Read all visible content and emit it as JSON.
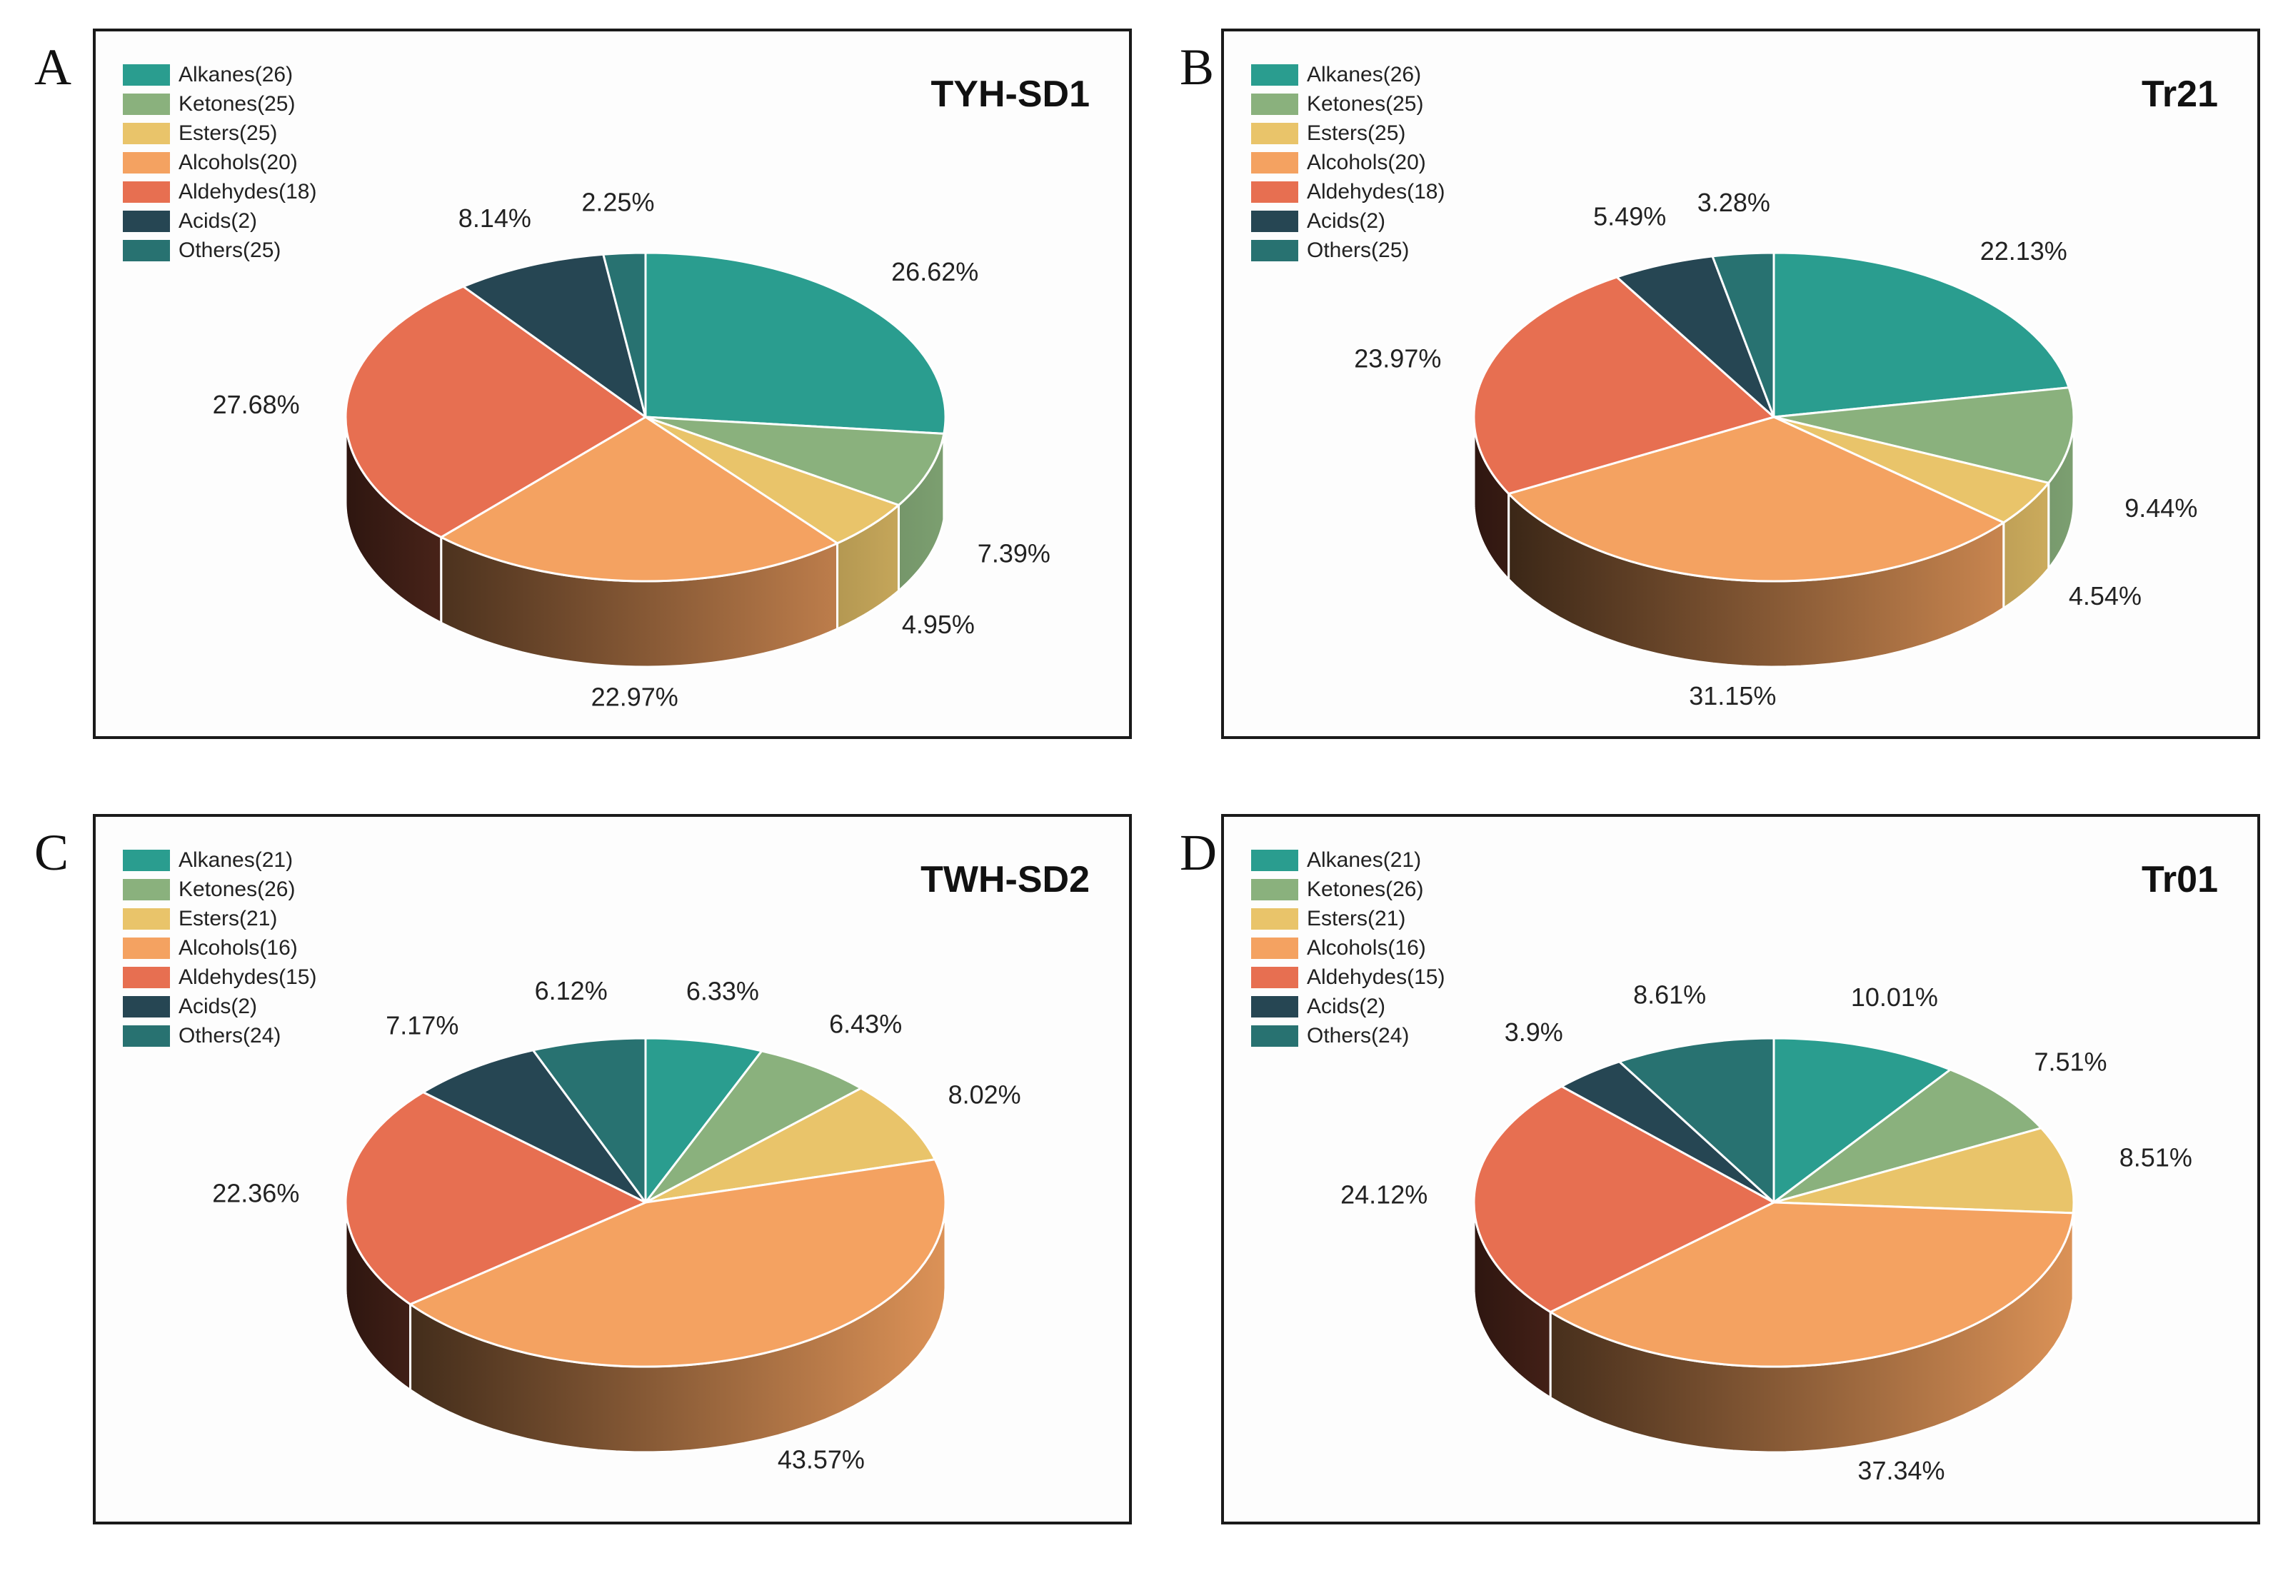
{
  "colors": {
    "Alkanes": "#2a9d8f",
    "Ketones": "#8ab17d",
    "Esters": "#e9c46a",
    "Alcohols": "#f4a261",
    "Aldehydes": "#e76f51",
    "Acids": "#264653",
    "Others": "#287271"
  },
  "panels": [
    {
      "letter": "A",
      "title": "TYH-SD1",
      "legend": [
        "Alkanes(26)",
        "Ketones(25)",
        "Esters(25)",
        "Alcohols(20)",
        "Aldehydes(18)",
        "Acids(2)",
        "Others(25)"
      ],
      "labels": [
        "26.62%",
        "7.39%",
        "4.95%",
        "22.97%",
        "27.68%",
        "8.14%",
        "2.25%"
      ]
    },
    {
      "letter": "B",
      "title": "Tr21",
      "legend": [
        "Alkanes(26)",
        "Ketones(25)",
        "Esters(25)",
        "Alcohols(20)",
        "Aldehydes(18)",
        "Acids(2)",
        "Others(25)"
      ],
      "labels": [
        "22.13%",
        "9.44%",
        "4.54%",
        "31.15%",
        "23.97%",
        "5.49%",
        "3.28%"
      ]
    },
    {
      "letter": "C",
      "title": "TWH-SD2",
      "legend": [
        "Alkanes(21)",
        "Ketones(26)",
        "Esters(21)",
        "Alcohols(16)",
        "Aldehydes(15)",
        "Acids(2)",
        "Others(24)"
      ],
      "labels": [
        "6.33%",
        "6.43%",
        "8.02%",
        "43.57%",
        "22.36%",
        "7.17%",
        "6.12%"
      ]
    },
    {
      "letter": "D",
      "title": "Tr01",
      "legend": [
        "Alkanes(21)",
        "Ketones(26)",
        "Esters(21)",
        "Alcohols(16)",
        "Aldehydes(15)",
        "Acids(2)",
        "Others(24)"
      ],
      "labels": [
        "10.01%",
        "7.51%",
        "8.51%",
        "37.34%",
        "24.12%",
        "3.9%",
        "8.61%"
      ]
    }
  ],
  "chart_data": [
    {
      "type": "pie",
      "title": "TYH-SD1",
      "categories": [
        "Alkanes",
        "Ketones",
        "Esters",
        "Alcohols",
        "Aldehydes",
        "Acids",
        "Others"
      ],
      "counts": [
        26,
        25,
        25,
        20,
        18,
        2,
        25
      ],
      "values": [
        26.62,
        7.39,
        4.95,
        22.97,
        27.68,
        8.14,
        2.25
      ]
    },
    {
      "type": "pie",
      "title": "Tr21",
      "categories": [
        "Alkanes",
        "Ketones",
        "Esters",
        "Alcohols",
        "Aldehydes",
        "Acids",
        "Others"
      ],
      "counts": [
        26,
        25,
        25,
        20,
        18,
        2,
        25
      ],
      "values": [
        22.13,
        9.44,
        4.54,
        31.15,
        23.97,
        5.49,
        3.28
      ]
    },
    {
      "type": "pie",
      "title": "TWH-SD2",
      "categories": [
        "Alkanes",
        "Ketones",
        "Esters",
        "Alcohols",
        "Aldehydes",
        "Acids",
        "Others"
      ],
      "counts": [
        21,
        26,
        21,
        16,
        15,
        2,
        24
      ],
      "values": [
        6.33,
        6.43,
        8.02,
        43.57,
        22.36,
        7.17,
        6.12
      ]
    },
    {
      "type": "pie",
      "title": "Tr01",
      "categories": [
        "Alkanes",
        "Ketones",
        "Esters",
        "Alcohols",
        "Aldehydes",
        "Acids",
        "Others"
      ],
      "counts": [
        21,
        26,
        21,
        16,
        15,
        2,
        24
      ],
      "values": [
        10.01,
        7.51,
        8.51,
        37.34,
        24.12,
        3.9,
        8.61
      ]
    }
  ]
}
